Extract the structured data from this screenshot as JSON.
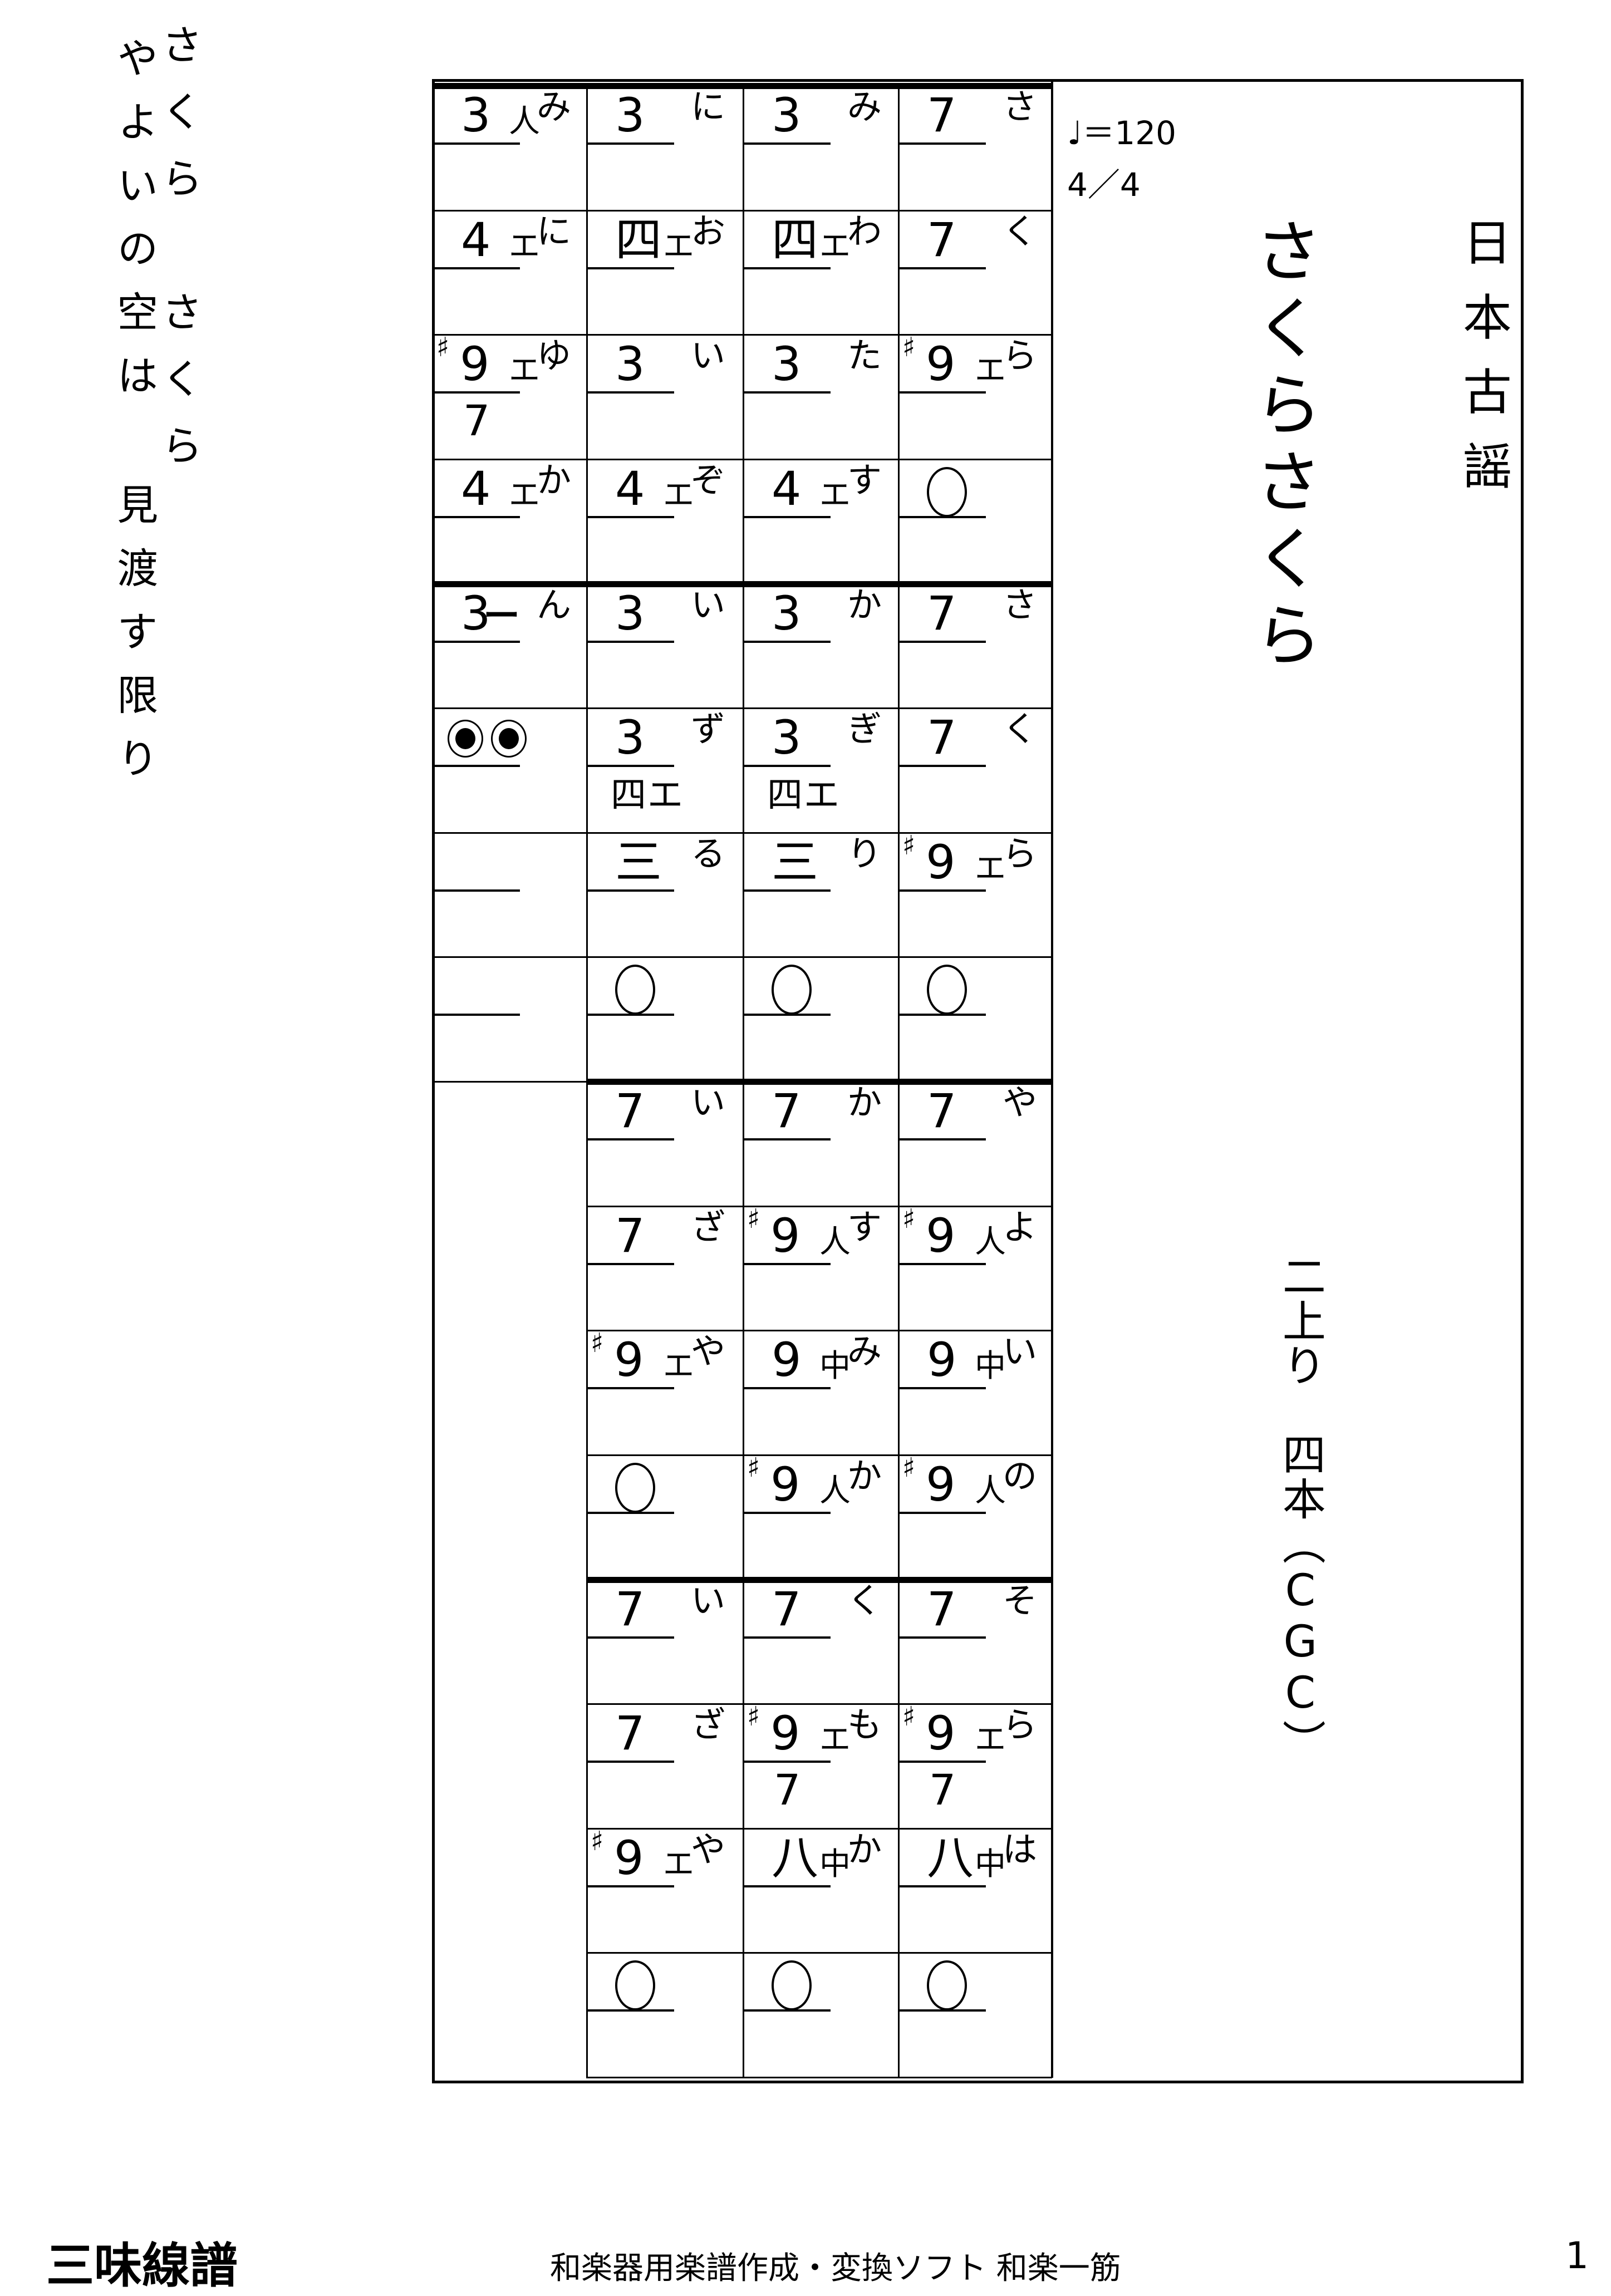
{
  "header": {
    "tempo": "♩＝120",
    "time_signature": "4／4",
    "genre": "日本古謡",
    "title": "さくらさくら",
    "tuning": "二上り　四本",
    "paren_open": "（",
    "strings_pitch": "CGC",
    "paren_close": "）"
  },
  "lyrics": {
    "right": [
      "さくら",
      "さくら"
    ],
    "left": [
      "やよいの空は",
      "見渡す限り"
    ]
  },
  "footer": {
    "left": "三味線譜",
    "center": "和楽器用楽譜作成・変換ソフト 和楽一筋",
    "page": "1"
  },
  "score": {
    "columns": [
      {
        "name": "line-1",
        "cells": [
          {
            "main": "7",
            "kana": "さ"
          },
          {
            "main": "7",
            "kana": "く"
          },
          {
            "main": "9",
            "sharp": "♯",
            "marker": "エ",
            "kana": "ら"
          },
          {
            "rest": true
          },
          {
            "main": "7",
            "kana": "さ"
          },
          {
            "main": "7",
            "kana": "く"
          },
          {
            "main": "9",
            "sharp": "♯",
            "marker": "エ",
            "kana": "ら"
          },
          {
            "rest": true
          },
          {
            "main": "7",
            "kana": "や"
          },
          {
            "main": "9",
            "sharp": "♯",
            "marker": "人",
            "kana": "よ"
          },
          {
            "main": "9",
            "marker": "中",
            "kana": "い"
          },
          {
            "main": "9",
            "sharp": "♯",
            "marker": "人",
            "kana": "の"
          },
          {
            "main": "7",
            "kana": "そ"
          },
          {
            "main": "9",
            "sharp": "♯",
            "marker": "エ",
            "kana": "ら",
            "second": "7"
          },
          {
            "main": "八",
            "marker": "中",
            "kana": "は"
          },
          {
            "rest": true
          }
        ]
      },
      {
        "name": "line-2",
        "cells": [
          {
            "main": "3",
            "kana": "み"
          },
          {
            "main": "四",
            "marker": "エ",
            "kana": "わ"
          },
          {
            "main": "3",
            "kana": "た"
          },
          {
            "main": "4",
            "marker": "エ",
            "kana": "す"
          },
          {
            "main": "3",
            "kana": "か"
          },
          {
            "main": "3",
            "kana": "ぎ",
            "second": "四エ"
          },
          {
            "main": "三",
            "kana": "り"
          },
          {
            "rest": true
          },
          {
            "main": "7",
            "kana": "か"
          },
          {
            "main": "9",
            "sharp": "♯",
            "marker": "人",
            "kana": "す"
          },
          {
            "main": "9",
            "marker": "中",
            "kana": "み"
          },
          {
            "main": "9",
            "sharp": "♯",
            "marker": "人",
            "kana": "か"
          },
          {
            "main": "7",
            "kana": "く"
          },
          {
            "main": "9",
            "sharp": "♯",
            "marker": "エ",
            "kana": "も",
            "second": "7"
          },
          {
            "main": "八",
            "marker": "中",
            "kana": "か"
          },
          {
            "rest": true
          }
        ]
      },
      {
        "name": "line-3",
        "cells": [
          {
            "main": "3",
            "kana": "に"
          },
          {
            "main": "四",
            "marker": "エ",
            "kana": "お"
          },
          {
            "main": "3",
            "kana": "い"
          },
          {
            "main": "4",
            "marker": "エ",
            "kana": "ぞ"
          },
          {
            "main": "3",
            "kana": "い"
          },
          {
            "main": "3",
            "kana": "ず",
            "second": "四エ"
          },
          {
            "main": "三",
            "kana": "る"
          },
          {
            "rest": true
          },
          {
            "main": "7",
            "kana": "い"
          },
          {
            "main": "7",
            "kana": "ざ"
          },
          {
            "main": "9",
            "sharp": "♯",
            "marker": "エ",
            "kana": "や"
          },
          {
            "rest": true
          },
          {
            "main": "7",
            "kana": "い"
          },
          {
            "main": "7",
            "kana": "ざ"
          },
          {
            "main": "9",
            "sharp": "♯",
            "marker": "エ",
            "kana": "や"
          },
          {
            "rest": true
          }
        ]
      },
      {
        "name": "line-4",
        "cells": [
          {
            "main": "3",
            "marker": "人",
            "kana": "み"
          },
          {
            "main": "4",
            "marker": "エ",
            "kana": "に"
          },
          {
            "main": "9",
            "sharp": "♯",
            "marker": "エ",
            "kana": "ゆ",
            "second": "7"
          },
          {
            "main": "4",
            "marker": "エ",
            "kana": "か"
          },
          {
            "main": "3",
            "tie": "ー",
            "kana": "ん"
          },
          {
            "end": true
          },
          {
            "empty": true
          },
          {
            "empty": true
          },
          null,
          null,
          null,
          null,
          null,
          null,
          null,
          null
        ]
      }
    ]
  }
}
